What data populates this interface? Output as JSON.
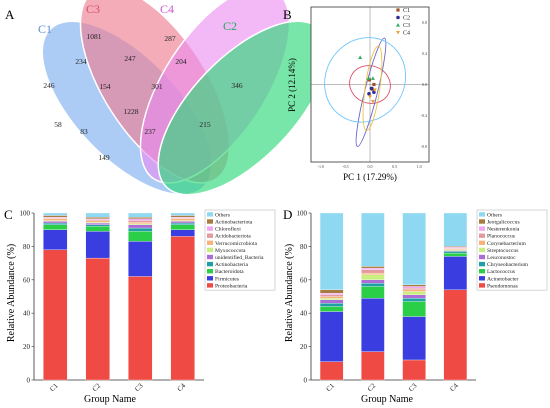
{
  "panels": {
    "a": "A",
    "b": "B",
    "c": "C",
    "d": "D"
  },
  "venn": {
    "set_labels": [
      "C1",
      "C3",
      "C4",
      "C2"
    ],
    "set_colors": [
      "#7fb0ef",
      "#ee7f93",
      "#e98af0",
      "#2fd97a"
    ],
    "counts": {
      "c1_only": "246",
      "c3_only": "1081",
      "c4_only": "287",
      "c2_only": "346",
      "c1_c3": "234",
      "c3_c4": "247",
      "c4_c2": "204",
      "c1_c3_c4": "154",
      "c3_c4_c2": "301",
      "all": "1228",
      "c1_c4": "58",
      "c3_c2": "215",
      "c1_c3_c2": "83",
      "c1_c4_c2": "237",
      "c1_c2": "149"
    }
  },
  "chart_data": [
    {
      "type": "scatter",
      "panel": "B",
      "xlabel": "PC 1 (17.29%)",
      "ylabel": "PC 2 (12.14%)",
      "xlim": [
        -1.2,
        1.2
      ],
      "ylim": [
        -1.0,
        1.0
      ],
      "x_ticks": [
        "-1.0",
        "-0.5",
        "0.0",
        "0.5",
        "1.0"
      ],
      "y_ticks": [
        "0.8",
        "0.4",
        "0.0",
        "-0.4",
        "-0.8"
      ],
      "grid": false,
      "reference_lines": "x=0, y=0",
      "legend": {
        "position": "top-right",
        "entries": [
          "C1",
          "C2",
          "C3",
          "C4"
        ]
      },
      "series": [
        {
          "name": "C1",
          "color": "#a0522d",
          "marker": "square",
          "points": [
            [
              -0.01,
              0.06
            ],
            [
              0.08,
              0.0
            ],
            [
              0.05,
              -0.06
            ]
          ]
        },
        {
          "name": "C2",
          "color": "#2b2b9a",
          "marker": "circle",
          "points": [
            [
              0.03,
              -0.05
            ],
            [
              0.08,
              -0.1
            ],
            [
              -0.02,
              -0.12
            ]
          ]
        },
        {
          "name": "C3",
          "color": "#2fae6b",
          "marker": "triangle",
          "points": [
            [
              -0.2,
              0.35
            ],
            [
              0.06,
              0.08
            ],
            [
              -0.03,
              0.08
            ]
          ]
        },
        {
          "name": "C4",
          "color": "#e8a53c",
          "marker": "triangle-down",
          "points": [
            [
              0.0,
              -0.16
            ],
            [
              0.1,
              -0.07
            ],
            [
              0.06,
              -0.22
            ]
          ]
        }
      ],
      "ellipses": [
        {
          "name": "C1",
          "color": "#e04f6a",
          "cx": 0.0,
          "cy": 0.0,
          "rx": 0.42,
          "ry": 0.24,
          "angle": 22
        },
        {
          "name": "C2",
          "color": "#6666cc",
          "cx": 0.02,
          "cy": -0.1,
          "rx": 0.13,
          "ry": 0.72,
          "angle": 14
        },
        {
          "name": "C3",
          "color": "#6ec6ff",
          "cx": -0.1,
          "cy": 0.06,
          "rx": 0.8,
          "ry": 0.56,
          "angle": 32
        },
        {
          "name": "C4",
          "color": "#f0c040",
          "cx": 0.05,
          "cy": -0.05,
          "rx": 0.15,
          "ry": 0.55,
          "angle": 8
        }
      ]
    },
    {
      "type": "bar",
      "panel": "C",
      "stacked": true,
      "categories": [
        "C1",
        "C2",
        "C3",
        "C4"
      ],
      "xlabel": "Group Name",
      "ylabel": "Relative Abundance (%)",
      "ylim": [
        0,
        100
      ],
      "y_ticks": [
        "0",
        "20",
        "40",
        "60",
        "80",
        "100"
      ],
      "legend": {
        "position": "top-right",
        "order": "top-to-bottom"
      },
      "series": [
        {
          "name": "Proteobacteria",
          "color": "#f04a45",
          "values": [
            78,
            73,
            62,
            86
          ]
        },
        {
          "name": "Firmicutes",
          "color": "#3a3ee0",
          "values": [
            12,
            16,
            21,
            4
          ]
        },
        {
          "name": "Bacteroidota",
          "color": "#2bcf47",
          "values": [
            3,
            3,
            6,
            3
          ]
        },
        {
          "name": "Actinobacteria",
          "color": "#1f9ea5",
          "values": [
            1,
            1,
            2,
            1
          ]
        },
        {
          "name": "unidentified_Bacteria",
          "color": "#ad6dd6",
          "values": [
            1,
            1,
            2,
            1
          ]
        },
        {
          "name": "Myxococcota",
          "color": "#c8ee7f",
          "values": [
            0.5,
            0.5,
            0.5,
            0.5
          ]
        },
        {
          "name": "Verrucomicrobiota",
          "color": "#f6b37a",
          "values": [
            1,
            1,
            1,
            1
          ]
        },
        {
          "name": "Acidobacteriota",
          "color": "#e39c9c",
          "values": [
            0.5,
            0.5,
            1,
            0.5
          ]
        },
        {
          "name": "Chloroflexi",
          "color": "#f2a6f2",
          "values": [
            0.5,
            0.5,
            1,
            0.5
          ]
        },
        {
          "name": "Actinobacteriota",
          "color": "#a87c3f",
          "values": [
            1,
            1,
            1,
            1
          ]
        },
        {
          "name": "Others",
          "color": "#8fd8f2",
          "values": [
            1.5,
            2.5,
            2.5,
            1.5
          ]
        }
      ]
    },
    {
      "type": "bar",
      "panel": "D",
      "stacked": true,
      "categories": [
        "C1",
        "C2",
        "C3",
        "C4"
      ],
      "xlabel": "Group Name",
      "ylabel": "Relative Abundance (%)",
      "ylim": [
        0,
        100
      ],
      "y_ticks": [
        "0",
        "20",
        "40",
        "60",
        "80",
        "100"
      ],
      "legend": {
        "position": "top-right",
        "order": "top-to-bottom"
      },
      "series": [
        {
          "name": "Pseudomonas",
          "color": "#f04a45",
          "values": [
            11,
            17,
            12,
            54
          ]
        },
        {
          "name": "Acinetobacter",
          "color": "#3a3ee0",
          "values": [
            30,
            32,
            26,
            20
          ]
        },
        {
          "name": "Lactococcus",
          "color": "#2bcf47",
          "values": [
            3,
            7,
            9,
            2
          ]
        },
        {
          "name": "Chryseobacterium",
          "color": "#1f9ea5",
          "values": [
            2,
            2,
            2,
            1
          ]
        },
        {
          "name": "Leuconostoc",
          "color": "#ad6dd6",
          "values": [
            2,
            2,
            2,
            0.5
          ]
        },
        {
          "name": "Streptococcus",
          "color": "#c8ee7f",
          "values": [
            1,
            3,
            2,
            0.5
          ]
        },
        {
          "name": "Corynebacterium",
          "color": "#f6b37a",
          "values": [
            1,
            1,
            1,
            0.5
          ]
        },
        {
          "name": "Planococcus",
          "color": "#e39c9c",
          "values": [
            1,
            2,
            1,
            0.5
          ]
        },
        {
          "name": "Nesterenkonia",
          "color": "#f2a6f2",
          "values": [
            1,
            1,
            1,
            0.5
          ]
        },
        {
          "name": "Jeotgalicoccus",
          "color": "#a87c3f",
          "values": [
            2,
            1,
            1,
            0.5
          ]
        },
        {
          "name": "Others",
          "color": "#8fd8f2",
          "values": [
            46,
            32,
            43,
            20
          ]
        }
      ]
    }
  ]
}
